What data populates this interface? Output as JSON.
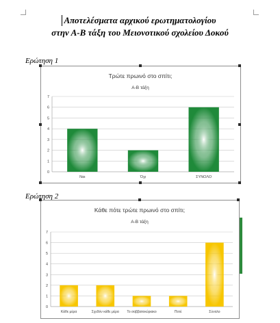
{
  "document": {
    "title_line1": "Αποτελέσματα αρχικού ερωτηματολογίου",
    "title_line2": "στην Α-Β τάξη του Μειονοτικού σχολείου Δοκού"
  },
  "sections": [
    {
      "label": "Ερώτηση 1"
    },
    {
      "label": "Ερώτηση 2"
    }
  ],
  "colors": {
    "chart1_bar": "#1f8a3a",
    "chart2_bar": "#f7c600",
    "grid": "#c8c8c8"
  },
  "chart_data": [
    {
      "type": "bar",
      "title": "Τρώτε πρωινό στο σπίτι;",
      "subtitle": "Α-Β τάξη",
      "categories": [
        "Ναι",
        "Όχι",
        "ΣΥΝΟΛΟ"
      ],
      "values": [
        4,
        2,
        6
      ],
      "ylim": [
        0,
        7
      ],
      "yticks": [
        "0",
        "1",
        "2",
        "3",
        "4",
        "5",
        "6",
        "7"
      ],
      "grid": true,
      "legend": "none"
    },
    {
      "type": "bar",
      "title": "Κάθε πότε τρώτε πρωινό στο σπίτι;",
      "subtitle": "Α-Β τάξη",
      "categories": [
        "Κάθε μέρα",
        "Σχεδόν κάθε μέρα",
        "Το σαββατοκύριακο",
        "Ποτέ",
        "Σύνολο"
      ],
      "values": [
        2,
        2,
        1,
        1,
        6
      ],
      "ylim": [
        0,
        7
      ],
      "yticks": [
        "0",
        "1",
        "2",
        "3",
        "4",
        "5",
        "6",
        "7"
      ],
      "grid": true,
      "legend": "none"
    }
  ]
}
